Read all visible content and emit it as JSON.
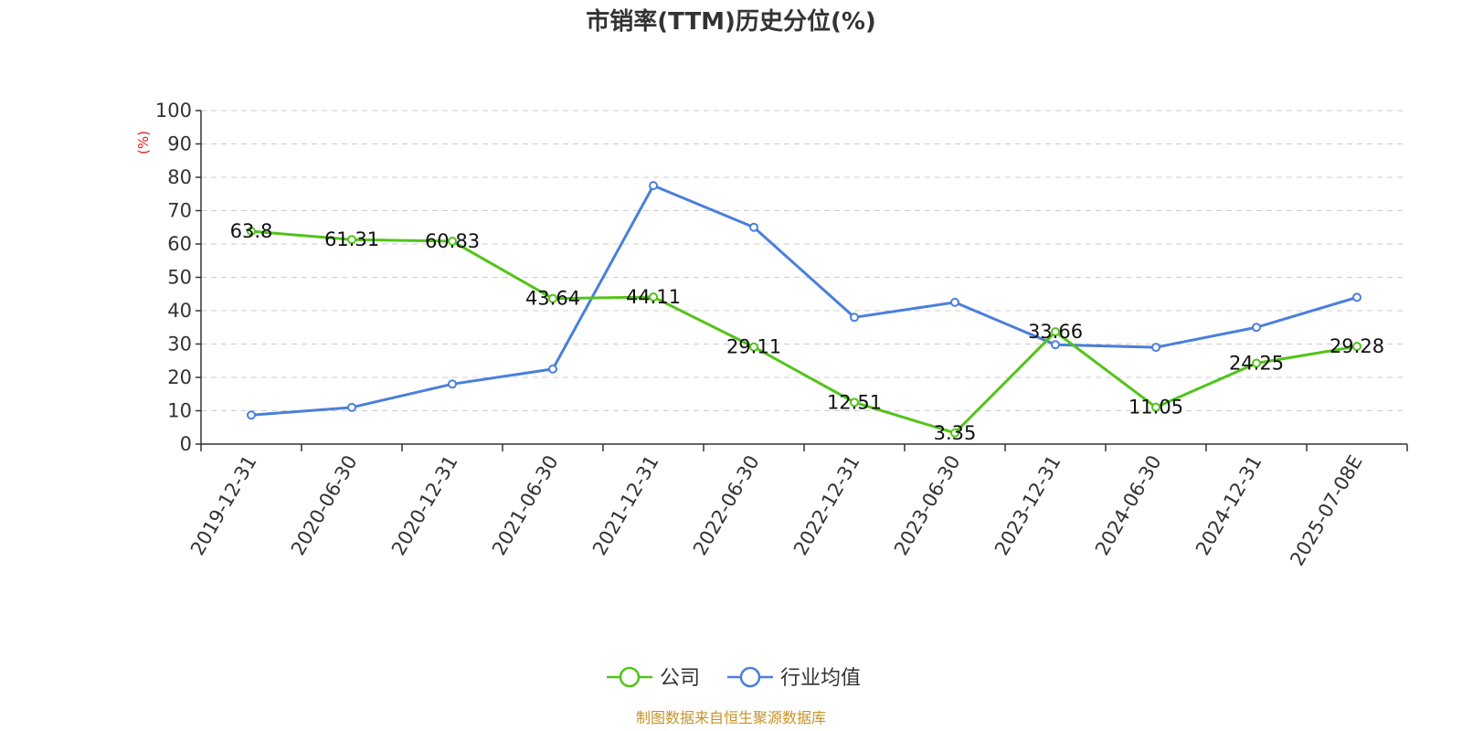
{
  "chart_data": {
    "type": "line",
    "title": "市销率(TTM)历史分位(%)",
    "ylabel": "(%)",
    "ylim": [
      0,
      100
    ],
    "yticks": [
      0,
      10,
      20,
      30,
      40,
      50,
      60,
      70,
      80,
      90,
      100
    ],
    "grid": true,
    "legend_position": "bottom",
    "categories": [
      "2019-12-31",
      "2020-06-30",
      "2020-12-31",
      "2021-06-30",
      "2021-12-31",
      "2022-06-30",
      "2022-12-31",
      "2023-06-30",
      "2023-12-31",
      "2024-06-30",
      "2024-12-31",
      "2025-07-08E"
    ],
    "series": [
      {
        "name": "公司",
        "color": "#52c41a",
        "values": [
          63.8,
          61.31,
          60.83,
          43.64,
          44.11,
          29.11,
          12.51,
          3.35,
          33.66,
          11.05,
          24.25,
          29.28
        ],
        "labels": [
          "63.8",
          "61.31",
          "60.83",
          "43.64",
          "44.11",
          "29.11",
          "12.51",
          "3.35",
          "33.66",
          "11.05",
          "24.25",
          "29.28"
        ]
      },
      {
        "name": "行业均值",
        "color": "#4a7fdc",
        "values": [
          8.7,
          11.0,
          18.0,
          22.5,
          77.5,
          65.0,
          38.0,
          42.5,
          29.8,
          29.0,
          35.0,
          44.0
        ]
      }
    ]
  },
  "source": {
    "text": "制图数据来自恒生聚源数据库",
    "color": "#c8922a"
  },
  "unit_color": "#e02020"
}
